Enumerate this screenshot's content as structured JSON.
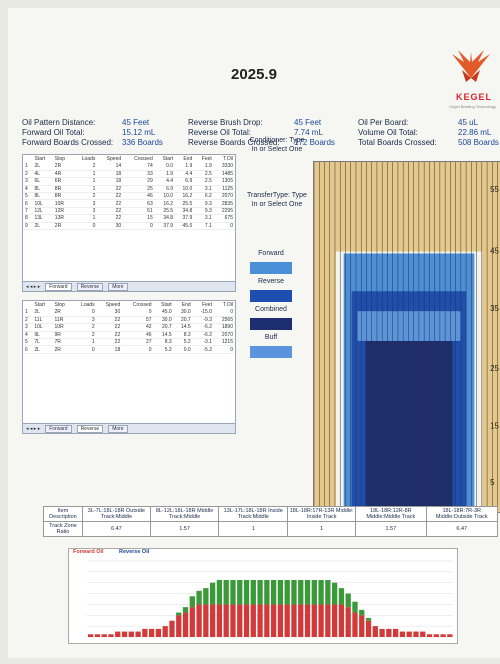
{
  "title": "2025.9",
  "logo": {
    "name": "KEGEL",
    "tagline": "Kegel Bowling Technology"
  },
  "summary": {
    "row1": [
      {
        "label": "Oil Pattern Distance:",
        "value": "45 Feet"
      },
      {
        "label": "Reverse Brush Drop:",
        "value": "45 Feet"
      },
      {
        "label": "Oil Per Board:",
        "value": "45 uL"
      }
    ],
    "row2": [
      {
        "label": "Forward Oil Total:",
        "value": "15.12 mL"
      },
      {
        "label": "Reverse Oil Total:",
        "value": "7.74 mL"
      },
      {
        "label": "Volume Oil Total:",
        "value": "22.86 mL"
      }
    ],
    "row3": [
      {
        "label": "Forward Boards Crossed:",
        "value": "336 Boards"
      },
      {
        "label": "Reverse Boards Crossed:",
        "value": "172 Boards"
      },
      {
        "label": "Total Boards Crossed:",
        "value": "508 Boards"
      }
    ]
  },
  "forward_table": {
    "headers": [
      "",
      "Start",
      "Stop",
      "Loads",
      "Speed",
      "Crossed",
      "Start",
      "End",
      "Feet",
      "T.Oil"
    ],
    "rows": [
      [
        "1",
        "2L",
        "2R",
        "2",
        "14",
        "74",
        "0.0",
        "1.9",
        "1.9",
        "3330"
      ],
      [
        "2",
        "4L",
        "4R",
        "1",
        "18",
        "33",
        "1.9",
        "4.4",
        "2.5",
        "1485"
      ],
      [
        "3",
        "6L",
        "6R",
        "1",
        "18",
        "29",
        "4.4",
        "6.9",
        "2.5",
        "1305"
      ],
      [
        "4",
        "8L",
        "8R",
        "1",
        "22",
        "25",
        "6.9",
        "10.0",
        "3.1",
        "1125"
      ],
      [
        "5",
        "8L",
        "8R",
        "2",
        "22",
        "46",
        "10.0",
        "16.2",
        "6.2",
        "2070"
      ],
      [
        "6",
        "10L",
        "10R",
        "3",
        "22",
        "63",
        "16.2",
        "25.5",
        "9.3",
        "2835"
      ],
      [
        "7",
        "12L",
        "12R",
        "3",
        "22",
        "51",
        "25.5",
        "34.8",
        "9.3",
        "2295"
      ],
      [
        "8",
        "13L",
        "13R",
        "1",
        "22",
        "15",
        "34.8",
        "37.9",
        "3.1",
        "675"
      ],
      [
        "9",
        "2L",
        "2R",
        "0",
        "30",
        "0",
        "37.9",
        "45.0",
        "7.1",
        "0"
      ]
    ],
    "tabs": [
      "Forward",
      "Reverse",
      "More"
    ],
    "active_tab": "Forward"
  },
  "reverse_table": {
    "headers": [
      "",
      "Start",
      "Stop",
      "Loads",
      "Speed",
      "Crossed",
      "Start",
      "End",
      "Feet",
      "T.Oil"
    ],
    "rows": [
      [
        "1",
        "2L",
        "2R",
        "0",
        "30",
        "0",
        "45.0",
        "30.0",
        "-15.0",
        "0"
      ],
      [
        "2",
        "11L",
        "11R",
        "3",
        "22",
        "57",
        "30.0",
        "20.7",
        "-9.3",
        "2565"
      ],
      [
        "3",
        "10L",
        "10R",
        "2",
        "22",
        "42",
        "20.7",
        "14.5",
        "-6.2",
        "1890"
      ],
      [
        "4",
        "9L",
        "9R",
        "2",
        "22",
        "46",
        "14.5",
        "8.3",
        "-6.2",
        "2070"
      ],
      [
        "5",
        "7L",
        "7R",
        "1",
        "22",
        "27",
        "8.3",
        "5.2",
        "-3.1",
        "1215"
      ],
      [
        "6",
        "2L",
        "2R",
        "0",
        "18",
        "0",
        "5.2",
        "0.0",
        "-5.2",
        "0"
      ]
    ],
    "tabs": [
      "Forward",
      "Reverse",
      "More"
    ],
    "active_tab": "Reverse"
  },
  "conditioner_label": "Conditioner: Type In or Select One",
  "transfer_label": "TransferType: Type In or Select One",
  "legend": [
    {
      "label": "Forward",
      "color": "#4a8fd8"
    },
    {
      "label": "Reverse",
      "color": "#1e4eb0"
    },
    {
      "label": "Combined",
      "color": "#1c2e6e"
    },
    {
      "label": "Buff",
      "color": "#5a94dc"
    }
  ],
  "lane_ticks": [
    "55",
    "45",
    "35",
    "25",
    "15",
    "5"
  ],
  "zone_table": {
    "headers": [
      "Item Description",
      "3L-7L:18L-18R Outside Track:Middle",
      "8L-12L:18L-18R Middle Track:Middle",
      "13L-17L:18L-18R Inside Track:Middle",
      "18L-18R:17R-13R Middle: Inside Track",
      "18L-18R:12R-8R Middle:Middle Track",
      "18L-18R:7R-3R Middle:Outside Track"
    ],
    "row_label": "Track Zone Ratio",
    "values": [
      "6.47",
      "1.57",
      "1",
      "1",
      "1.57",
      "6.47"
    ]
  },
  "chart_legend": {
    "forward": "Forward Oil",
    "reverse": "Reverse Oil"
  },
  "chart_data": {
    "type": "bar",
    "title": "",
    "series": [
      {
        "name": "Forward Oil",
        "color": "#d23a3a",
        "values": [
          1,
          1,
          1,
          1,
          2,
          2,
          2,
          2,
          3,
          3,
          3,
          4,
          6,
          8,
          9,
          11,
          12,
          12,
          12,
          12,
          12,
          12,
          12,
          12,
          12,
          12,
          12,
          12,
          12,
          12,
          12,
          12,
          12,
          12,
          12,
          12,
          12,
          12,
          11,
          9,
          8,
          6,
          4,
          3,
          3,
          3,
          2,
          2,
          2,
          2,
          1,
          1,
          1,
          1
        ]
      },
      {
        "name": "Reverse Oil",
        "color": "#3a9a3a",
        "values": [
          0,
          0,
          0,
          0,
          0,
          0,
          0,
          0,
          0,
          0,
          0,
          0,
          0,
          1,
          2,
          4,
          5,
          6,
          8,
          9,
          9,
          9,
          9,
          9,
          9,
          9,
          9,
          9,
          9,
          9,
          9,
          9,
          9,
          9,
          9,
          9,
          8,
          6,
          5,
          4,
          2,
          1,
          0,
          0,
          0,
          0,
          0,
          0,
          0,
          0,
          0,
          0,
          0,
          0
        ]
      }
    ],
    "ylim": [
      0,
      28
    ]
  }
}
